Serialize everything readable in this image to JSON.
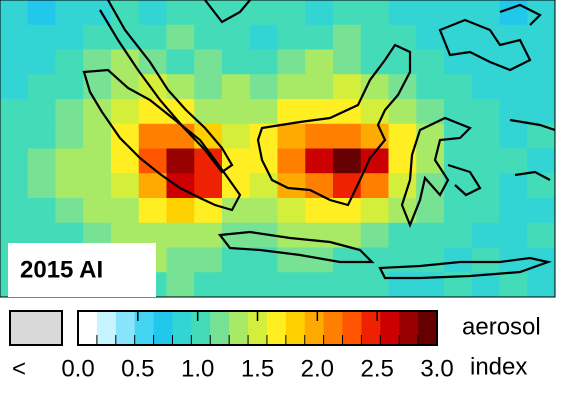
{
  "map": {
    "title": "2015 AI",
    "values": [
      [
        0.8,
        0.7,
        0.9,
        0.8,
        1.0,
        0.9,
        1.0,
        1.1,
        1.0,
        1.1,
        1.0,
        0.9,
        1.1,
        1.0,
        0.9,
        0.8,
        0.9,
        0.8,
        0.7,
        0.9
      ],
      [
        0.9,
        0.8,
        0.8,
        1.0,
        1.1,
        1.0,
        1.2,
        1.1,
        1.0,
        0.9,
        1.1,
        1.0,
        1.2,
        1.1,
        1.0,
        0.9,
        0.8,
        0.9,
        0.8,
        0.8
      ],
      [
        0.8,
        0.9,
        1.0,
        1.2,
        1.3,
        1.2,
        1.1,
        1.2,
        1.1,
        1.0,
        1.2,
        1.3,
        1.2,
        1.1,
        1.0,
        1.0,
        0.9,
        0.8,
        0.9,
        0.8
      ],
      [
        0.9,
        1.0,
        1.1,
        1.2,
        1.4,
        1.5,
        1.3,
        1.2,
        1.3,
        1.2,
        1.3,
        1.4,
        1.5,
        1.3,
        1.2,
        1.1,
        1.0,
        0.9,
        0.8,
        0.9
      ],
      [
        1.0,
        1.1,
        1.2,
        1.3,
        1.5,
        1.7,
        1.6,
        1.4,
        1.3,
        1.4,
        1.6,
        1.7,
        1.6,
        1.5,
        1.3,
        1.2,
        1.1,
        1.0,
        0.9,
        0.9
      ],
      [
        1.0,
        1.1,
        1.2,
        1.4,
        1.6,
        2.1,
        2.2,
        1.8,
        1.5,
        1.6,
        2.0,
        2.2,
        2.1,
        2.0,
        1.6,
        1.3,
        1.1,
        1.0,
        0.9,
        1.0
      ],
      [
        1.1,
        1.2,
        1.3,
        1.4,
        1.7,
        2.3,
        2.7,
        2.4,
        1.7,
        1.6,
        2.2,
        2.6,
        2.9,
        2.6,
        1.7,
        1.3,
        1.1,
        1.0,
        1.0,
        0.9
      ],
      [
        1.1,
        1.2,
        1.3,
        1.4,
        1.5,
        2.0,
        2.6,
        2.5,
        1.6,
        1.5,
        1.9,
        2.2,
        2.4,
        2.1,
        1.5,
        1.2,
        1.1,
        1.0,
        0.9,
        1.0
      ],
      [
        1.0,
        1.1,
        1.2,
        1.3,
        1.4,
        1.6,
        1.8,
        1.7,
        1.4,
        1.3,
        1.5,
        1.6,
        1.7,
        1.5,
        1.3,
        1.2,
        1.0,
        1.0,
        0.9,
        0.9
      ],
      [
        1.0,
        1.1,
        1.1,
        1.2,
        1.3,
        1.4,
        1.4,
        1.3,
        1.2,
        1.2,
        1.3,
        1.4,
        1.3,
        1.2,
        1.1,
        1.1,
        1.0,
        0.9,
        0.9,
        1.0
      ],
      [
        1.1,
        1.0,
        1.1,
        1.2,
        1.2,
        1.3,
        1.2,
        1.2,
        1.1,
        1.1,
        1.2,
        1.2,
        1.1,
        1.0,
        1.0,
        1.0,
        0.9,
        1.0,
        0.9,
        0.9
      ],
      [
        1.0,
        1.1,
        1.0,
        1.1,
        1.2,
        1.1,
        1.2,
        1.1,
        1.0,
        1.1,
        1.0,
        1.1,
        1.0,
        1.0,
        0.9,
        0.9,
        1.0,
        0.9,
        1.0,
        0.9
      ]
    ]
  },
  "colorbar": {
    "range": [
      0,
      3
    ],
    "ticks": [
      {
        "value": 0,
        "label": "0.0"
      },
      {
        "value": 0.5,
        "label": "0.5"
      },
      {
        "value": 1,
        "label": "1.0"
      },
      {
        "value": 1.5,
        "label": "1.5"
      },
      {
        "value": 2,
        "label": "2.0"
      },
      {
        "value": 2.5,
        "label": "2.5"
      },
      {
        "value": 3,
        "label": "3.0"
      }
    ],
    "colors": [
      "#ffffff",
      "#c8f4ff",
      "#88e4fa",
      "#44d4f4",
      "#22c8ec",
      "#33d4d4",
      "#44dcb8",
      "#77e294",
      "#a8ea66",
      "#d4ee3c",
      "#ffee22",
      "#ffd000",
      "#ffaa00",
      "#ff8000",
      "#ff5500",
      "#ee2200",
      "#cc0000",
      "#990000",
      "#660000"
    ],
    "below_range_color": "#d9d9d9",
    "below_range_symbol": "<",
    "label_lines": [
      "aerosol",
      "index"
    ]
  }
}
